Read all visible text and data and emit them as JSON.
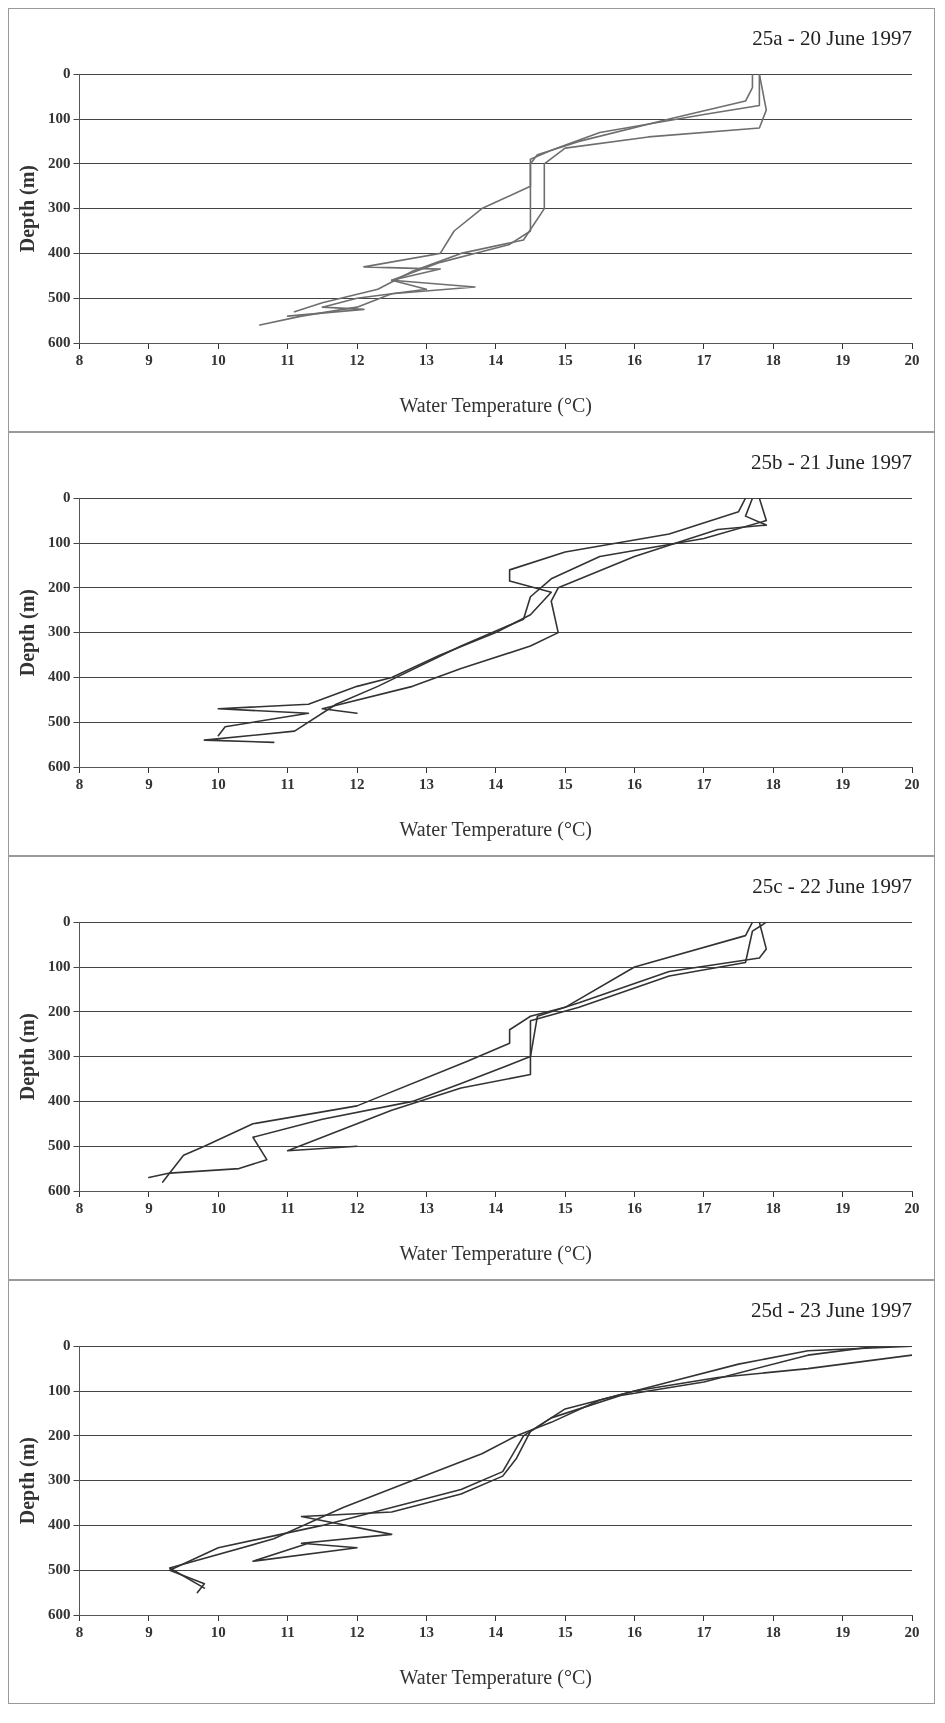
{
  "chart_data": [
    {
      "type": "line",
      "title": "25a - 20 June 1997",
      "xlabel": "Water Temperature (°C)",
      "ylabel": "Depth (m)",
      "xlim": [
        8,
        20
      ],
      "xticks": [
        8,
        9,
        10,
        11,
        12,
        13,
        14,
        15,
        16,
        17,
        18,
        19,
        20
      ],
      "ylim": [
        600,
        0
      ],
      "yticks": [
        0,
        100,
        200,
        300,
        400,
        500,
        600
      ],
      "grid": "y",
      "legend": false,
      "marker": "none",
      "line_style": "solid",
      "series": [
        {
          "color": "#6e6e6e",
          "x": [
            17.7,
            17.7,
            17.6,
            16.5,
            15.2,
            14.6,
            14.5,
            14.5,
            13.8,
            13.4,
            13.2,
            12.1,
            13.2,
            12.5,
            13.7,
            12.5,
            12,
            11.2,
            10.6
          ],
          "values": [
            0,
            30,
            60,
            100,
            150,
            180,
            200,
            250,
            300,
            350,
            400,
            430,
            435,
            460,
            475,
            490,
            520,
            540,
            560
          ]
        },
        {
          "color": "#6e6e6e",
          "x": [
            17.8,
            17.9,
            17.8,
            16.2,
            15,
            14.7,
            14.7,
            14.4,
            13.5,
            12.8,
            12.3,
            11.5,
            11.1
          ],
          "values": [
            0,
            80,
            120,
            140,
            165,
            200,
            300,
            370,
            400,
            440,
            480,
            510,
            530
          ]
        },
        {
          "color": "#6e6e6e",
          "x": [
            17.8,
            17.8,
            17,
            15.5,
            14.8,
            14.5,
            14.5,
            14.2,
            13.2,
            12.5,
            13,
            12,
            11.5,
            12.1,
            11
          ],
          "values": [
            0,
            70,
            90,
            130,
            170,
            190,
            350,
            380,
            420,
            460,
            480,
            500,
            520,
            525,
            540
          ]
        }
      ]
    },
    {
      "type": "line",
      "title": "25b - 21 June 1997",
      "xlabel": "Water Temperature (°C)",
      "ylabel": "Depth (m)",
      "xlim": [
        8,
        20
      ],
      "xticks": [
        8,
        9,
        10,
        11,
        12,
        13,
        14,
        15,
        16,
        17,
        18,
        19,
        20
      ],
      "ylim": [
        600,
        0
      ],
      "yticks": [
        0,
        100,
        200,
        300,
        400,
        500,
        600
      ],
      "grid": "y",
      "legend": false,
      "marker": "none",
      "line_style": "solid",
      "series": [
        {
          "color": "#333333",
          "x": [
            17.6,
            17.5,
            16.5,
            15,
            14.2,
            14.2,
            14.8,
            14.5,
            14,
            13.2,
            12.5,
            12,
            11.3,
            10,
            11.3,
            10.1,
            10
          ],
          "values": [
            0,
            30,
            80,
            120,
            160,
            185,
            210,
            260,
            300,
            350,
            400,
            420,
            460,
            470,
            480,
            510,
            530
          ]
        },
        {
          "color": "#333333",
          "x": [
            17.8,
            17.9,
            17,
            15.5,
            14.8,
            14.5,
            14.4,
            13.5,
            12.3,
            11.7,
            11.1,
            9.8,
            10.8
          ],
          "values": [
            0,
            50,
            90,
            130,
            180,
            220,
            270,
            330,
            420,
            460,
            520,
            540,
            545
          ]
        },
        {
          "color": "#333333",
          "x": [
            17.7,
            17.6,
            17.9,
            17.2,
            16,
            14.9,
            14.8,
            14.9,
            14.5,
            13.5,
            12.8,
            11.5,
            12
          ],
          "values": [
            0,
            40,
            60,
            70,
            130,
            200,
            230,
            300,
            330,
            380,
            420,
            470,
            480
          ]
        }
      ]
    },
    {
      "type": "line",
      "title": "25c - 22 June 1997",
      "xlabel": "Water Temperature (°C)",
      "ylabel": "Depth (m)",
      "xlim": [
        8,
        20
      ],
      "xticks": [
        8,
        9,
        10,
        11,
        12,
        13,
        14,
        15,
        16,
        17,
        18,
        19,
        20
      ],
      "ylim": [
        600,
        0
      ],
      "yticks": [
        0,
        100,
        200,
        300,
        400,
        500,
        600
      ],
      "grid": "y",
      "legend": false,
      "marker": "none",
      "line_style": "solid",
      "series": [
        {
          "color": "#333333",
          "x": [
            17.7,
            17.6,
            16,
            15,
            14.5,
            14.2,
            14.2,
            13.6,
            12,
            10.5,
            9.8,
            9.5,
            9.3,
            9
          ],
          "values": [
            0,
            30,
            100,
            190,
            210,
            240,
            270,
            310,
            410,
            450,
            500,
            520,
            560,
            570
          ]
        },
        {
          "color": "#333333",
          "x": [
            17.8,
            17.9,
            17.8,
            16.5,
            15.2,
            14.6,
            14.5,
            13.5,
            12.8,
            11.5,
            10.5,
            10.7,
            10.3,
            9.3,
            9.2
          ],
          "values": [
            0,
            60,
            80,
            110,
            180,
            210,
            300,
            360,
            400,
            440,
            480,
            530,
            550,
            560,
            580
          ]
        },
        {
          "color": "#333333",
          "x": [
            17.9,
            17.7,
            17.6,
            16.5,
            15.2,
            14.5,
            14.5,
            13.5,
            12.5,
            11.5,
            11,
            12
          ],
          "values": [
            0,
            20,
            90,
            120,
            190,
            220,
            340,
            370,
            420,
            480,
            510,
            500
          ]
        }
      ]
    },
    {
      "type": "line",
      "title": "25d - 23 June 1997",
      "xlabel": "Water Temperature (°C)",
      "ylabel": "Depth (m)",
      "xlim": [
        8,
        20
      ],
      "xticks": [
        8,
        9,
        10,
        11,
        12,
        13,
        14,
        15,
        16,
        17,
        18,
        19,
        20
      ],
      "ylim": [
        600,
        0
      ],
      "yticks": [
        0,
        100,
        200,
        300,
        400,
        500,
        600
      ],
      "grid": "y",
      "legend": false,
      "marker": "none",
      "line_style": "solid",
      "series": [
        {
          "color": "#333333",
          "x": [
            20,
            18.5,
            17.5,
            16.5,
            15.5,
            14.8,
            14.3,
            13.8,
            12.8,
            11.8,
            10.8,
            9.3,
            9.8
          ],
          "values": [
            0,
            10,
            40,
            80,
            120,
            170,
            200,
            240,
            300,
            360,
            430,
            495,
            540
          ]
        },
        {
          "color": "#333333",
          "x": [
            20,
            18.5,
            17.2,
            16,
            15,
            14.5,
            14.3,
            14.1,
            13.5,
            12.5,
            11.2,
            12.5,
            11.2,
            12,
            10.5,
            11.3
          ],
          "values": [
            20,
            50,
            70,
            100,
            140,
            190,
            250,
            290,
            330,
            370,
            380,
            420,
            440,
            450,
            480,
            440
          ]
        },
        {
          "color": "#333333",
          "x": [
            19.5,
            18.5,
            17,
            15.8,
            14.8,
            14.4,
            14.1,
            13.5,
            12.5,
            11.5,
            10,
            9.3,
            9.8,
            9.7
          ],
          "values": [
            0,
            20,
            80,
            110,
            160,
            200,
            280,
            320,
            360,
            400,
            450,
            500,
            530,
            550
          ]
        }
      ]
    }
  ]
}
